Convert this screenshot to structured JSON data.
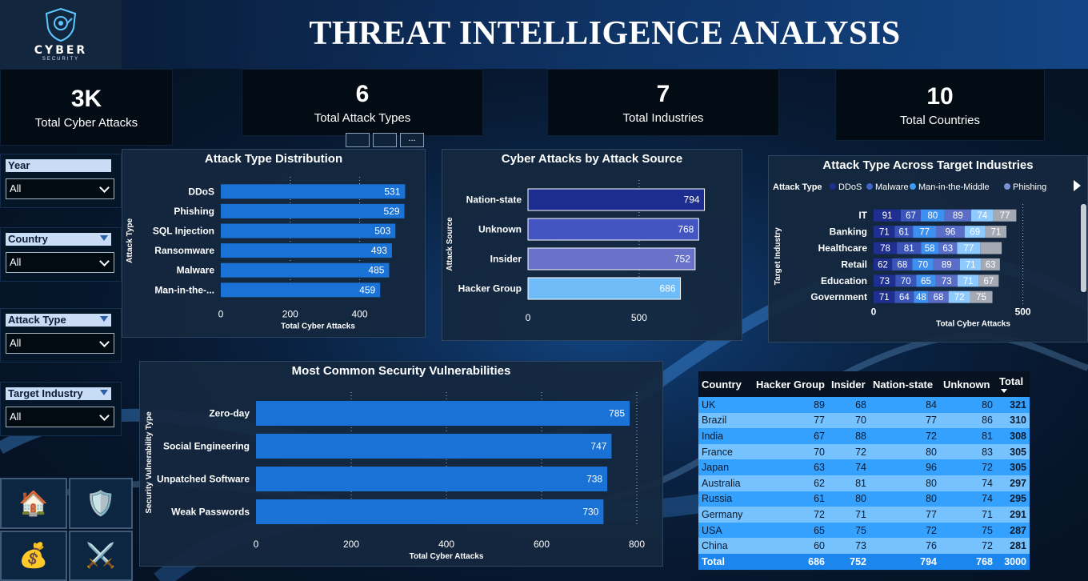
{
  "app": {
    "title": "THREAT INTELLIGENCE ANALYSIS",
    "logo_text": "CYBER",
    "logo_subtext": "SECURITY"
  },
  "kpis": [
    {
      "value": "3K",
      "label": "Total Cyber Attacks"
    },
    {
      "value": "6",
      "label": "Total Attack Types"
    },
    {
      "value": "7",
      "label": "Total Industries"
    },
    {
      "value": "10",
      "label": "Total Countries"
    }
  ],
  "slicers": [
    {
      "title": "Year",
      "value": "All"
    },
    {
      "title": "Country",
      "value": "All"
    },
    {
      "title": "Attack Type",
      "value": "All"
    },
    {
      "title": "Target Industry",
      "value": "All"
    }
  ],
  "nav": [
    {
      "icon": "home-icon",
      "glyph": "🏠"
    },
    {
      "icon": "shield-icon",
      "glyph": "🛡️"
    },
    {
      "icon": "money-bag-icon",
      "glyph": "💰"
    },
    {
      "icon": "crossed-swords-icon",
      "glyph": "⚔️"
    }
  ],
  "colors": {
    "bar": "#1a72d6",
    "ddos": "#1f2f8f",
    "malware": "#3f63c8",
    "mitm": "#3e9bf0",
    "phishing": "#7a8fd6",
    "source_bars": [
      "#1d2d8f",
      "#4355c0",
      "#6872c9",
      "#70bcf8"
    ]
  },
  "chart_data": [
    {
      "id": "attack-type-distribution",
      "type": "bar",
      "orientation": "horizontal",
      "title": "Attack Type Distribution",
      "xlabel": "Total Cyber Attacks",
      "ylabel": "Attack Type",
      "categories": [
        "DDoS",
        "Phishing",
        "SQL Injection",
        "Ransomware",
        "Malware",
        "Man-in-the-..."
      ],
      "values": [
        531,
        529,
        503,
        493,
        485,
        459
      ],
      "xticks": [
        0,
        200,
        400
      ],
      "xlim": [
        0,
        560
      ]
    },
    {
      "id": "attacks-by-source",
      "type": "bar",
      "orientation": "horizontal",
      "title": "Cyber Attacks by Attack Source",
      "xlabel": "",
      "ylabel": "Attack Source",
      "categories": [
        "Nation-state",
        "Unknown",
        "Insider",
        "Hacker Group"
      ],
      "values": [
        794,
        768,
        752,
        686
      ],
      "xticks": [
        0,
        500
      ],
      "xlim": [
        0,
        900
      ]
    },
    {
      "id": "attack-type-across-industries",
      "type": "bar",
      "orientation": "horizontal",
      "stacked": true,
      "title": "Attack Type Across Target Industries",
      "xlabel": "Total Cyber Attacks",
      "ylabel": "Target Industry",
      "legend_title": "Attack Type",
      "legend": [
        "DDoS",
        "Malware",
        "Man-in-the-Middle",
        "Phishing"
      ],
      "categories": [
        "IT",
        "Banking",
        "Healthcare",
        "Retail",
        "Education",
        "Government"
      ],
      "series": [
        {
          "values": [
            91,
            71,
            78,
            62,
            73,
            71
          ]
        },
        {
          "values": [
            67,
            61,
            81,
            68,
            70,
            64
          ]
        },
        {
          "values": [
            80,
            77,
            58,
            70,
            65,
            48
          ]
        },
        {
          "values": [
            89,
            96,
            63,
            89,
            73,
            68
          ]
        },
        {
          "values": [
            74,
            69,
            77,
            71,
            71,
            72
          ]
        },
        {
          "values": [
            77,
            71,
            72,
            63,
            67,
            75
          ]
        }
      ],
      "hidden_labels": [
        [],
        [],
        [],
        [],
        [],
        [
          2
        ]
      ],
      "xticks": [
        0,
        500
      ],
      "xlim": [
        0,
        560
      ]
    },
    {
      "id": "security-vulnerabilities",
      "type": "bar",
      "orientation": "horizontal",
      "title": "Most Common Security Vulnerabilities",
      "xlabel": "Total Cyber Attacks",
      "ylabel": "Security Vulnerability Type",
      "categories": [
        "Zero-day",
        "Social Engineering",
        "Unpatched Software",
        "Weak Passwords"
      ],
      "values": [
        785,
        747,
        738,
        730
      ],
      "xticks": [
        0,
        200,
        400,
        600,
        800
      ],
      "xlim": [
        0,
        800
      ]
    },
    {
      "id": "country-by-source",
      "type": "table",
      "columns": [
        "Country",
        "Hacker Group",
        "Insider",
        "Nation-state",
        "Unknown",
        "Total"
      ],
      "rows": [
        [
          "UK",
          89,
          68,
          84,
          80,
          321
        ],
        [
          "Brazil",
          77,
          70,
          77,
          86,
          310
        ],
        [
          "India",
          67,
          88,
          72,
          81,
          308
        ],
        [
          "France",
          70,
          72,
          80,
          83,
          305
        ],
        [
          "Japan",
          63,
          74,
          96,
          72,
          305
        ],
        [
          "Australia",
          62,
          81,
          80,
          74,
          297
        ],
        [
          "Russia",
          61,
          80,
          80,
          74,
          295
        ],
        [
          "Germany",
          72,
          71,
          77,
          71,
          291
        ],
        [
          "USA",
          65,
          75,
          72,
          75,
          287
        ],
        [
          "China",
          60,
          73,
          76,
          72,
          281
        ]
      ],
      "total_row": [
        "Total",
        686,
        752,
        794,
        768,
        3000
      ]
    }
  ]
}
